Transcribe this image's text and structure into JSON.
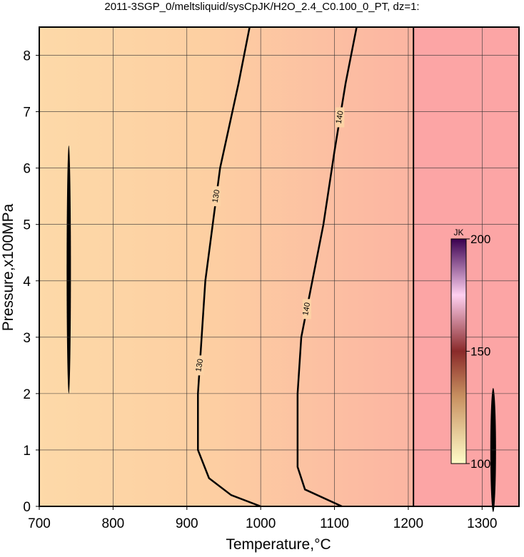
{
  "chart_data": {
    "type": "contour",
    "title": "2011-3SGP_0/meltsliquid/sysCpJK/H2O_2.4_C0.100_0_PT, dz=1:",
    "xlabel": "Temperature,°C",
    "ylabel": "Pressure,x100MPa",
    "xlim": [
      700,
      1350
    ],
    "ylim": [
      0,
      8.5
    ],
    "xticks": [
      700,
      800,
      900,
      1000,
      1100,
      1200,
      1300
    ],
    "yticks": [
      0,
      1,
      2,
      3,
      4,
      5,
      6,
      7,
      8
    ],
    "grid": true,
    "boundary_x": 1207,
    "contours": [
      {
        "level": 130,
        "x": [
          1000,
          960,
          930,
          915,
          915,
          920,
          925,
          935,
          945,
          950,
          970,
          985
        ],
        "y": [
          0,
          0.2,
          0.5,
          1,
          2,
          3,
          4,
          5,
          6,
          6.3,
          7.5,
          8.5
        ]
      },
      {
        "level": 140,
        "x": [
          1110,
          1060,
          1050,
          1050,
          1055,
          1070,
          1085,
          1100,
          1115,
          1130
        ],
        "y": [
          0,
          0.3,
          0.7,
          2,
          3,
          4,
          5,
          6.3,
          7.5,
          8.5
        ]
      }
    ],
    "colorbar": {
      "label": "JK",
      "lim": [
        100,
        200
      ],
      "ticks": [
        100,
        150,
        200
      ]
    }
  }
}
